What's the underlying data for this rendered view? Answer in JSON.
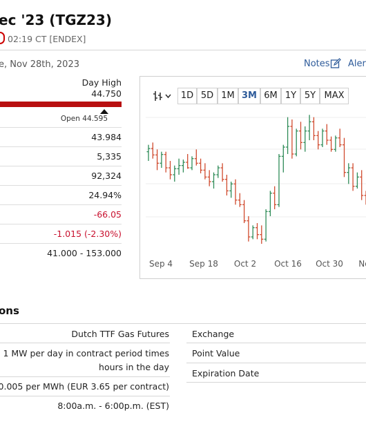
{
  "header": {
    "title": "ec '23 (TGZ23)",
    "time": "02:19 CT [ENDEX]",
    "date": "e, Nov 28th, 2023",
    "notes_label": "Notes",
    "alerts_label": "Alert"
  },
  "stats": {
    "day_high_label": "Day High",
    "day_high_value": "44.750",
    "open_label": "Open 44.595",
    "rows": [
      "43.984",
      "5,335",
      "92,324",
      "24.94%",
      "-66.05",
      "-1.015 (-2.30%)",
      "41.000 - 153.000"
    ]
  },
  "chart": {
    "ranges": [
      "1D",
      "5D",
      "1M",
      "3M",
      "6M",
      "1Y",
      "5Y",
      "MAX"
    ],
    "active_range": "3M"
  },
  "chart_data": {
    "type": "ohlc",
    "x_tick_labels": [
      "Sep 4",
      "Sep 18",
      "Oct 2",
      "Oct 16",
      "Oct 30",
      "Nov"
    ],
    "up_color": "#2e8b57",
    "down_color": "#d04a2e",
    "bars": [
      [
        39.5,
        41.0,
        37.5,
        40.2
      ],
      [
        40.2,
        41.5,
        38.0,
        38.8
      ],
      [
        38.8,
        40.0,
        35.5,
        37.0
      ],
      [
        37.0,
        39.5,
        36.0,
        38.9
      ],
      [
        38.9,
        39.5,
        35.0,
        36.0
      ],
      [
        36.0,
        37.5,
        33.5,
        34.5
      ],
      [
        34.5,
        36.5,
        33.0,
        35.8
      ],
      [
        35.8,
        38.0,
        34.5,
        36.5
      ],
      [
        36.5,
        37.8,
        35.0,
        37.2
      ],
      [
        37.2,
        39.0,
        35.8,
        36.0
      ],
      [
        36.0,
        38.5,
        35.5,
        38.0
      ],
      [
        38.0,
        40.0,
        36.5,
        37.0
      ],
      [
        37.0,
        38.0,
        34.8,
        35.5
      ],
      [
        35.5,
        37.0,
        33.5,
        34.0
      ],
      [
        34.0,
        35.5,
        32.0,
        33.0
      ],
      [
        33.0,
        35.0,
        31.5,
        34.5
      ],
      [
        34.5,
        36.5,
        33.8,
        36.0
      ],
      [
        36.0,
        37.0,
        33.0,
        33.5
      ],
      [
        33.5,
        34.5,
        30.0,
        31.0
      ],
      [
        31.0,
        33.0,
        29.5,
        32.5
      ],
      [
        32.5,
        33.5,
        28.0,
        29.0
      ],
      [
        29.0,
        30.5,
        27.5,
        28.0
      ],
      [
        28.0,
        29.0,
        24.0,
        24.5
      ],
      [
        24.5,
        25.5,
        20.0,
        21.0
      ],
      [
        21.0,
        23.5,
        20.5,
        23.0
      ],
      [
        23.0,
        24.0,
        20.5,
        21.5
      ],
      [
        21.5,
        23.5,
        19.5,
        20.5
      ],
      [
        20.5,
        27.0,
        20.0,
        26.5
      ],
      [
        26.5,
        31.0,
        25.5,
        30.5
      ],
      [
        30.5,
        32.0,
        27.0,
        28.0
      ],
      [
        28.0,
        39.0,
        27.5,
        38.5
      ],
      [
        38.5,
        41.0,
        35.0,
        40.5
      ],
      [
        40.5,
        47.0,
        39.0,
        45.0
      ],
      [
        45.0,
        46.5,
        38.0,
        39.0
      ],
      [
        39.0,
        44.5,
        38.5,
        44.0
      ],
      [
        44.0,
        46.0,
        40.0,
        41.5
      ],
      [
        41.5,
        45.0,
        39.5,
        44.0
      ],
      [
        44.0,
        47.5,
        42.0,
        46.0
      ],
      [
        46.0,
        47.0,
        42.0,
        43.0
      ],
      [
        43.0,
        44.0,
        40.0,
        41.0
      ],
      [
        41.0,
        44.5,
        40.5,
        44.0
      ],
      [
        44.0,
        45.5,
        41.0,
        42.0
      ],
      [
        42.0,
        42.8,
        39.5,
        40.0
      ],
      [
        40.0,
        43.0,
        39.5,
        42.5
      ],
      [
        42.5,
        44.5,
        40.5,
        41.0
      ],
      [
        41.0,
        42.5,
        34.0,
        35.0
      ],
      [
        35.0,
        37.0,
        32.5,
        36.0
      ],
      [
        36.0,
        37.0,
        31.0,
        32.0
      ],
      [
        32.0,
        35.0,
        31.5,
        34.0
      ],
      [
        34.0,
        35.5,
        29.0,
        30.0
      ],
      [
        30.0,
        31.0,
        28.0,
        28.5
      ],
      [
        28.5,
        32.0,
        28.0,
        30.5
      ],
      [
        30.5,
        37.0,
        30.0,
        35.5
      ]
    ]
  },
  "specs": {
    "title": "ons",
    "left": [
      "Dutch TTF Gas Futures",
      "1 MW per day in contract period times",
      "hours in the day",
      "0.005 per MWh (EUR 3.65 per contract)",
      "8:00a.m. - 6:00p.m. (EST)"
    ],
    "right": [
      "Exchange",
      "Point Value",
      "Expiration Date"
    ]
  }
}
